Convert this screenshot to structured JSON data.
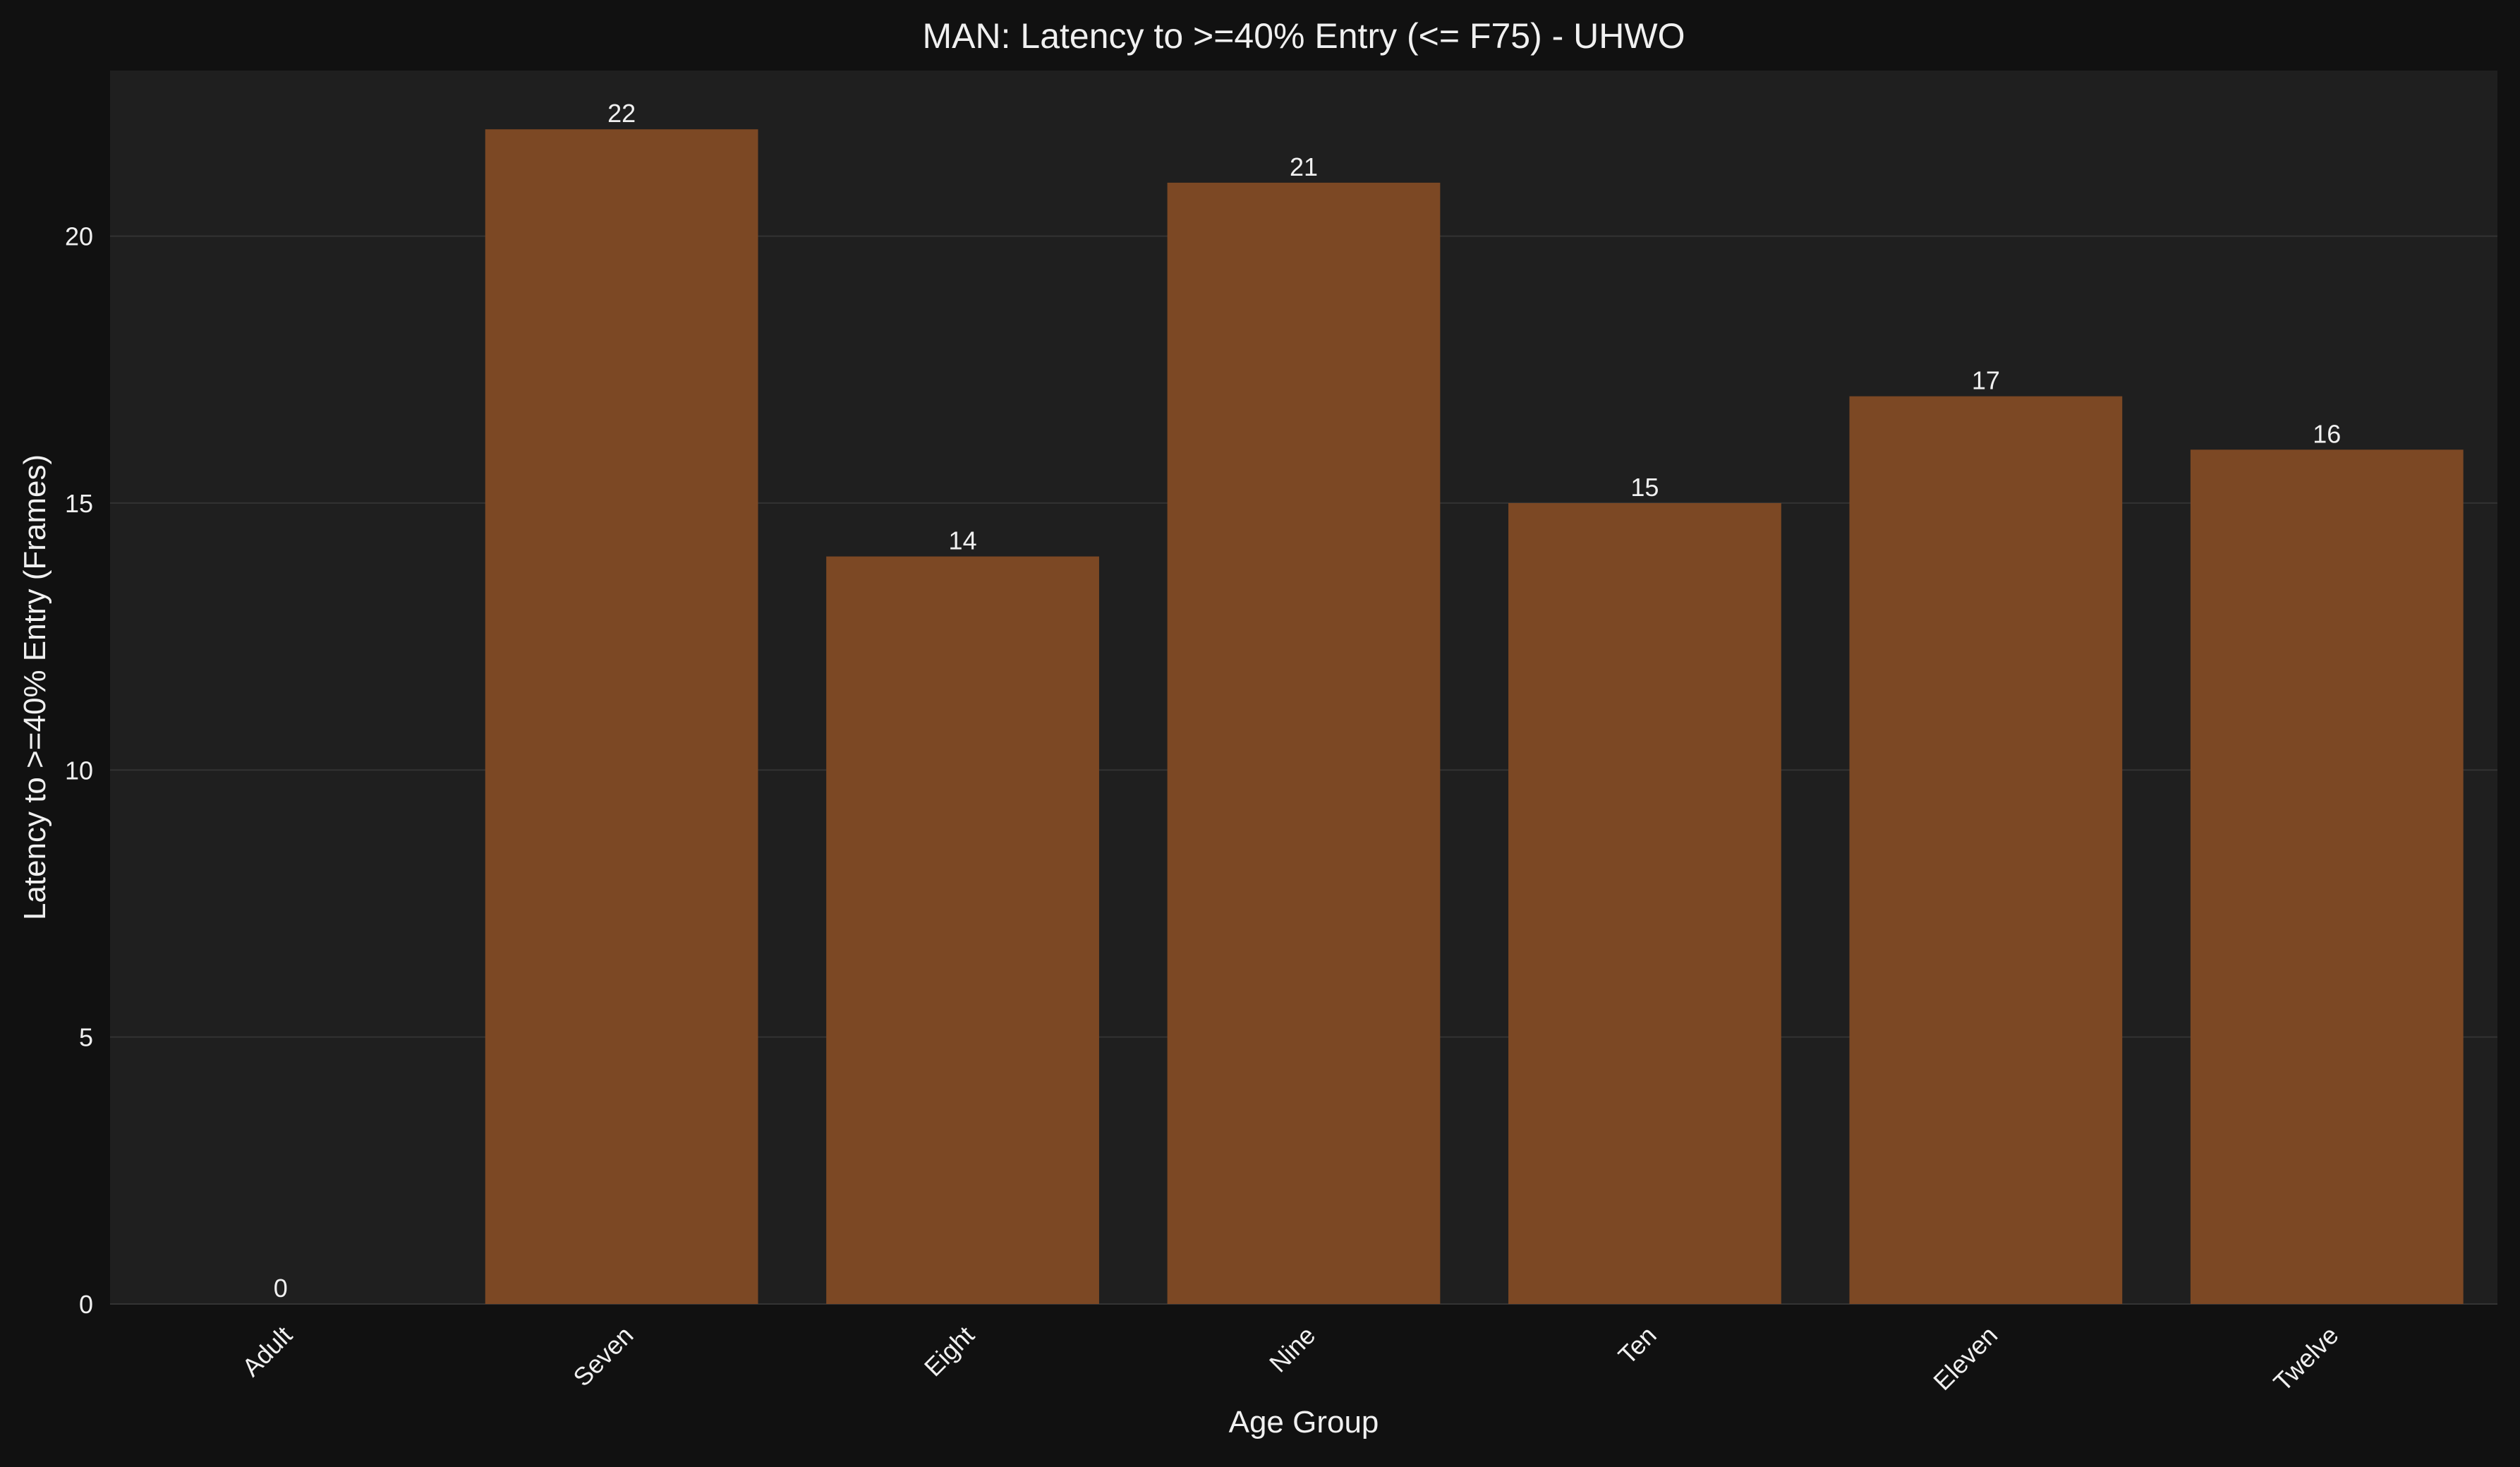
{
  "chart_data": {
    "type": "bar",
    "title": "MAN: Latency to >=40% Entry (<= F75) - UHWO",
    "xlabel": "Age Group",
    "ylabel": "Latency to >=40% Entry (Frames)",
    "categories": [
      "Adult",
      "Seven",
      "Eight",
      "Nine",
      "Ten",
      "Eleven",
      "Twelve"
    ],
    "values": [
      0,
      22,
      14,
      21,
      15,
      17,
      16
    ],
    "data_labels": [
      "0",
      "22",
      "14",
      "21",
      "15",
      "17",
      "16"
    ],
    "yticks": [
      0,
      5,
      10,
      15,
      20
    ],
    "ylim": [
      0,
      23.1
    ],
    "grid": "y",
    "legend": "none",
    "colors": {
      "figure_background": "#111111",
      "axes_background": "#1f1f1f",
      "bar": "#7c4824",
      "grid": "#333333",
      "text": "#f0f0f0"
    }
  }
}
